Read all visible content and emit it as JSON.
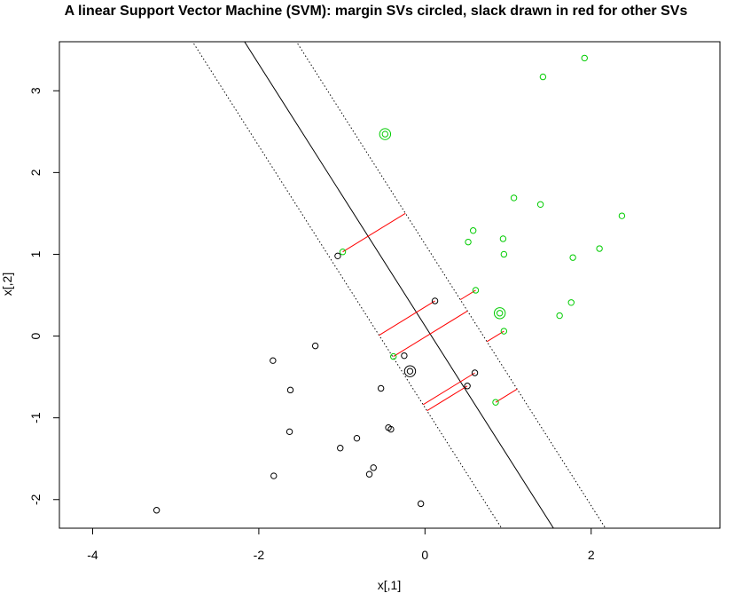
{
  "chart_data": {
    "type": "scatter",
    "title": "A linear Support Vector Machine (SVM): margin SVs circled, slack drawn in red for other SVs",
    "xlabel": "x[,1]",
    "ylabel": "x[,2]",
    "xlim": [
      -4.4,
      3.55
    ],
    "ylim": [
      -2.35,
      3.6
    ],
    "xticks": [
      -4,
      -2,
      0,
      2
    ],
    "xtick_labels": [
      "-4",
      "-2",
      "0",
      "2"
    ],
    "yticks": [
      -2,
      -1,
      0,
      1,
      2,
      3
    ],
    "ytick_labels": [
      "-2",
      "-1",
      "0",
      "1",
      "2",
      "3"
    ],
    "grid": false,
    "colors": {
      "class_neg": "#000000",
      "class_pos": "#00cc00",
      "slack": "#ff0000",
      "line": "#000000"
    },
    "decision_boundary": {
      "w": [
        1.6,
        1.0
      ],
      "b": 0.125
    },
    "margin_lines": {
      "w": [
        1.6,
        1.0
      ],
      "offsets": [
        -1.0,
        1.0
      ]
    },
    "series": [
      {
        "class": "black",
        "points": [
          [
            -3.23,
            -2.13
          ],
          [
            -1.83,
            -0.3
          ],
          [
            -1.62,
            -0.66
          ],
          [
            -1.63,
            -1.17
          ],
          [
            -1.82,
            -1.71
          ],
          [
            -1.32,
            -0.12
          ],
          [
            -1.02,
            -1.37
          ],
          [
            -0.82,
            -1.25
          ],
          [
            -0.67,
            -1.69
          ],
          [
            -0.62,
            -1.61
          ],
          [
            -0.53,
            -0.64
          ],
          [
            -0.44,
            -1.12
          ],
          [
            -0.41,
            -1.14
          ],
          [
            -0.05,
            -2.05
          ],
          [
            -1.05,
            0.98
          ],
          [
            -0.25,
            -0.24
          ],
          [
            0.12,
            0.43
          ],
          [
            0.51,
            -0.61
          ],
          [
            0.6,
            -0.45
          ],
          [
            -0.18,
            -0.43
          ]
        ]
      },
      {
        "class": "green",
        "points": [
          [
            1.92,
            3.4
          ],
          [
            1.42,
            3.17
          ],
          [
            -0.48,
            2.47
          ],
          [
            1.07,
            1.69
          ],
          [
            1.39,
            1.61
          ],
          [
            2.37,
            1.47
          ],
          [
            0.58,
            1.29
          ],
          [
            0.94,
            1.19
          ],
          [
            0.52,
            1.15
          ],
          [
            0.95,
            1.0
          ],
          [
            1.78,
            0.96
          ],
          [
            2.1,
            1.07
          ],
          [
            -0.99,
            1.03
          ],
          [
            0.61,
            0.56
          ],
          [
            1.76,
            0.41
          ],
          [
            0.9,
            0.28
          ],
          [
            1.62,
            0.25
          ],
          [
            0.95,
            0.06
          ],
          [
            -0.38,
            -0.25
          ],
          [
            0.85,
            -0.81
          ]
        ]
      }
    ],
    "margin_svs": [
      {
        "point": [
          -0.48,
          2.47
        ],
        "class": "green"
      },
      {
        "point": [
          0.9,
          0.28
        ],
        "class": "green"
      },
      {
        "point": [
          -0.18,
          -0.43
        ],
        "class": "black"
      }
    ],
    "slack_svs": [
      {
        "point": [
          -0.99,
          1.03
        ],
        "class": "green"
      },
      {
        "point": [
          0.61,
          0.56
        ],
        "class": "green"
      },
      {
        "point": [
          0.95,
          0.06
        ],
        "class": "green"
      },
      {
        "point": [
          -0.38,
          -0.25
        ],
        "class": "green"
      },
      {
        "point": [
          0.85,
          -0.81
        ],
        "class": "green"
      },
      {
        "point": [
          0.12,
          0.43
        ],
        "class": "black"
      },
      {
        "point": [
          0.51,
          -0.61
        ],
        "class": "black"
      },
      {
        "point": [
          0.6,
          -0.45
        ],
        "class": "black"
      }
    ]
  }
}
